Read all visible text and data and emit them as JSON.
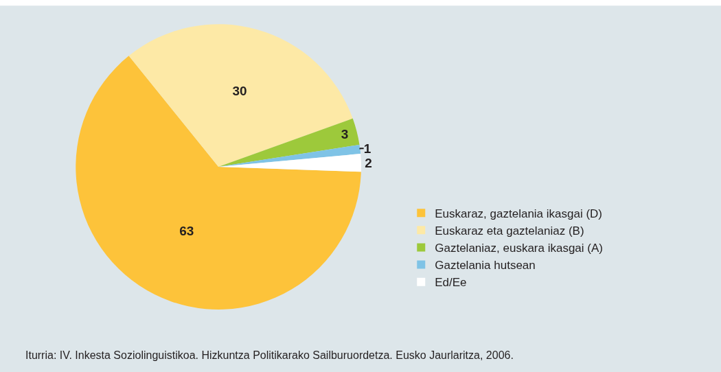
{
  "chart_data": {
    "type": "pie",
    "categories": [
      "Euskaraz, gaztelania ikasgai (D)",
      "Euskaraz eta gaztelaniaz (B)",
      "Gaztelaniaz, euskara ikasgai (A)",
      "Gaztelania hutsean",
      "Ed/Ee"
    ],
    "values": [
      63,
      30,
      3,
      1,
      2
    ],
    "colors": [
      "#fdc33a",
      "#fde9a6",
      "#9dc93b",
      "#7fc3e6",
      "#ffffff"
    ],
    "data_labels": true,
    "legend": "right",
    "annotations": [
      "Iturria: IV. Inkesta Soziolinguistikoa. Hizkuntza Politikarako Sailburuordetza. Eusko Jaurlaritza, 2006."
    ]
  }
}
